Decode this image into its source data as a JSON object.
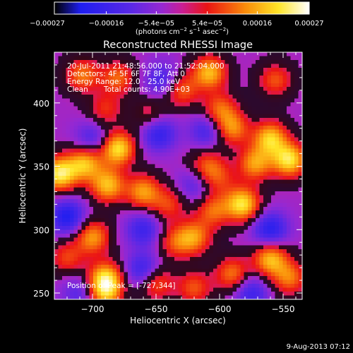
{
  "chart_data": {
    "type": "heatmap",
    "title": "Reconstructed RHESSI Image",
    "xlabel": "Heliocentric X (arcsec)",
    "ylabel": "Heliocentric Y (arcsec)",
    "xlim": [
      -730,
      -535
    ],
    "ylim": [
      245,
      440
    ],
    "x_ticks": [
      -700,
      -650,
      -600,
      -550
    ],
    "y_ticks": [
      250,
      300,
      350,
      400
    ],
    "x_tick_labels": [
      "−700",
      "−650",
      "−600",
      "−550"
    ],
    "y_tick_labels": [
      "250",
      "300",
      "350",
      "400"
    ],
    "colorbar": {
      "min": -0.00027,
      "max": 0.00027,
      "ticks": [
        -0.00027,
        -0.00016,
        -5.4e-05,
        5.4e-05,
        0.00016,
        0.00027
      ],
      "tick_labels": [
        "−0.00027",
        "−0.00016",
        "−5.4e−05",
        "5.4e−05",
        "0.00016",
        "0.00027"
      ],
      "units_main": "(photons cm",
      "units_exp1": "−2",
      "units_mid": " s",
      "units_exp2": "−1",
      "units_mid2": " asec",
      "units_exp3": "−2",
      "units_end": ")"
    },
    "peak": [
      -727,
      344
    ],
    "blobs": [
      {
        "x": -726,
        "y": 344,
        "a": 1.0
      },
      {
        "x": -706,
        "y": 352,
        "a": 0.8
      },
      {
        "x": -688,
        "y": 335,
        "a": 0.8
      },
      {
        "x": -680,
        "y": 364,
        "a": 0.95
      },
      {
        "x": -660,
        "y": 330,
        "a": 0.7
      },
      {
        "x": -700,
        "y": 294,
        "a": 0.7
      },
      {
        "x": -690,
        "y": 262,
        "a": 0.8
      },
      {
        "x": -690,
        "y": 250,
        "a": 0.7
      },
      {
        "x": -650,
        "y": 258,
        "a": 0.55
      },
      {
        "x": -708,
        "y": 422,
        "a": 0.6
      },
      {
        "x": -680,
        "y": 420,
        "a": 0.55
      },
      {
        "x": -608,
        "y": 424,
        "a": 0.8
      },
      {
        "x": -630,
        "y": 410,
        "a": 0.55
      },
      {
        "x": -600,
        "y": 395,
        "a": 0.55
      },
      {
        "x": -556,
        "y": 418,
        "a": 0.5
      },
      {
        "x": -590,
        "y": 380,
        "a": 0.65
      },
      {
        "x": -572,
        "y": 352,
        "a": 0.7
      },
      {
        "x": -545,
        "y": 355,
        "a": 0.95
      },
      {
        "x": -560,
        "y": 372,
        "a": 0.85
      },
      {
        "x": -582,
        "y": 320,
        "a": 0.95
      },
      {
        "x": -610,
        "y": 350,
        "a": 0.5
      },
      {
        "x": -620,
        "y": 294,
        "a": 0.65
      },
      {
        "x": -605,
        "y": 315,
        "a": 0.55
      },
      {
        "x": -640,
        "y": 320,
        "a": 0.45
      },
      {
        "x": -635,
        "y": 290,
        "a": 0.45
      },
      {
        "x": -560,
        "y": 277,
        "a": 0.8
      },
      {
        "x": -590,
        "y": 265,
        "a": 0.6
      },
      {
        "x": -545,
        "y": 262,
        "a": 0.6
      },
      {
        "x": -620,
        "y": 254,
        "a": 0.5
      },
      {
        "x": -720,
        "y": 278,
        "a": 0.45
      },
      {
        "x": -690,
        "y": 395,
        "a": 0.4
      },
      {
        "x": -655,
        "y": 390,
        "a": 0.35
      },
      {
        "x": -600,
        "y": 340,
        "a": 0.35
      },
      {
        "x": -660,
        "y": 300,
        "a": -0.5
      },
      {
        "x": -648,
        "y": 376,
        "a": -0.6
      },
      {
        "x": -610,
        "y": 378,
        "a": -0.45
      },
      {
        "x": -720,
        "y": 310,
        "a": -0.7
      },
      {
        "x": -660,
        "y": 268,
        "a": -0.55
      },
      {
        "x": -560,
        "y": 300,
        "a": -0.65
      },
      {
        "x": -575,
        "y": 250,
        "a": -0.5
      },
      {
        "x": -700,
        "y": 372,
        "a": -0.4
      },
      {
        "x": -645,
        "y": 418,
        "a": -0.45
      },
      {
        "x": -710,
        "y": 250,
        "a": -0.35
      },
      {
        "x": -620,
        "y": 335,
        "a": -0.35
      }
    ]
  },
  "annotations": {
    "time_range": "20-Jul-2011 21:48:56.000 to 21:52:04.000",
    "detectors": "Detectors: 4F 5F 6F 7F 8F, Att 0",
    "energy": "Energy Range: 12.0 - 25.0 keV",
    "clean_label": "Clean",
    "total_counts": "Total counts: 4.90E+03",
    "peak_text": "Position of Peak = [-727,344]"
  },
  "footer": {
    "date": "9-Aug-2013 07:12"
  }
}
